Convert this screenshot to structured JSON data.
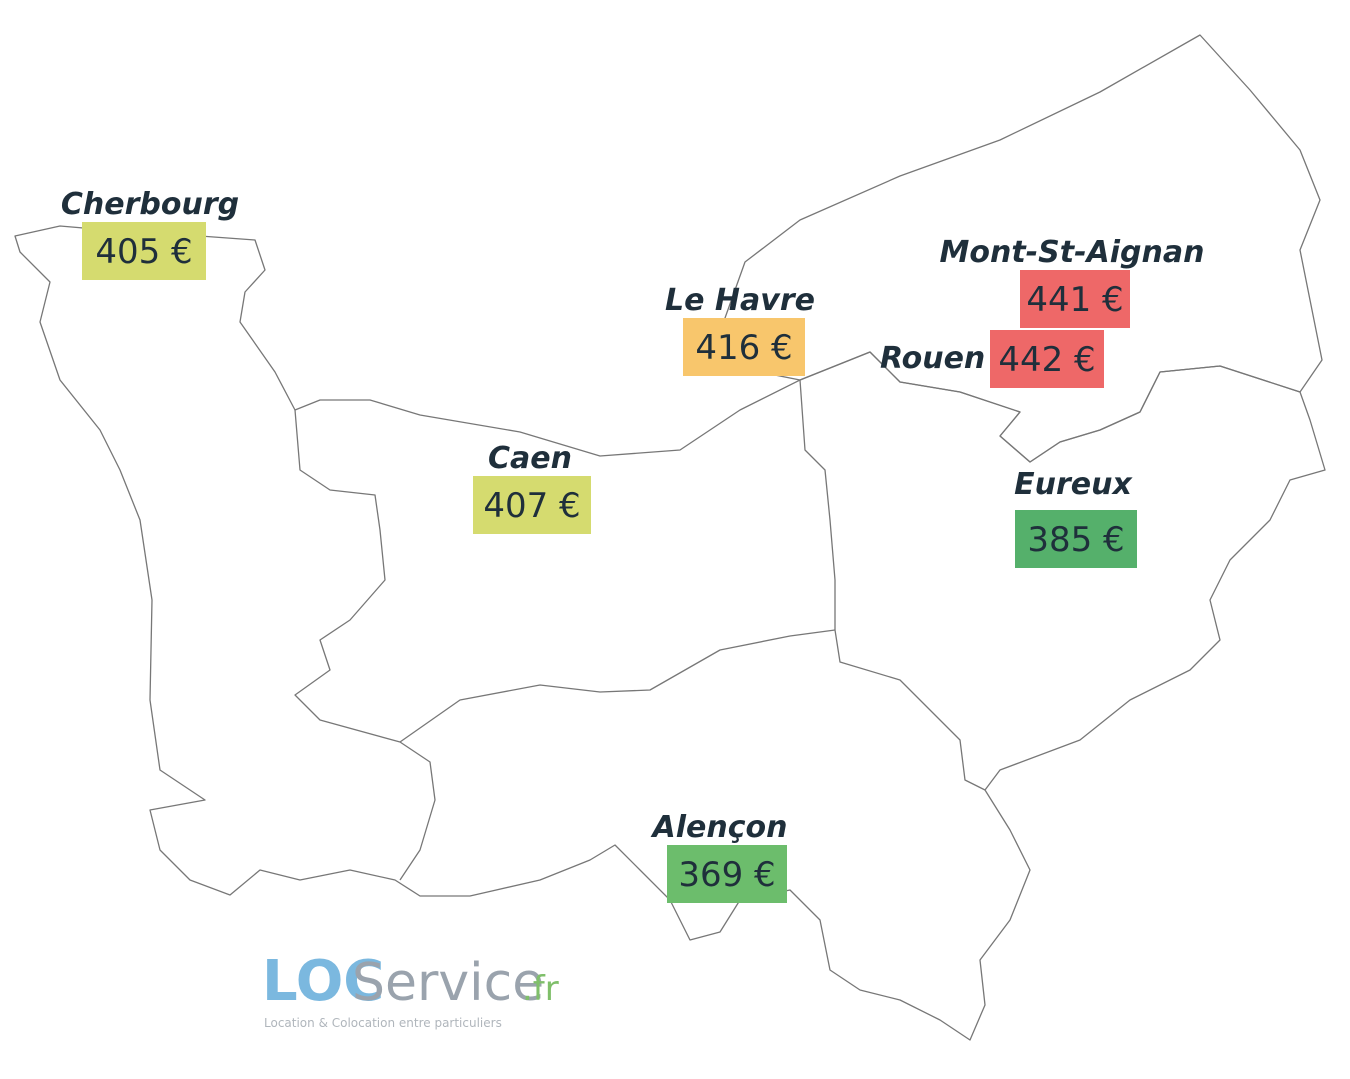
{
  "cities": [
    {
      "name": "Cherbourg",
      "price": "405 €",
      "color": "#d5db6f"
    },
    {
      "name": "Le Havre",
      "price": "416 €",
      "color": "#f8c66c"
    },
    {
      "name": "Mont-St-Aignan",
      "price": "441 €",
      "color": "#ee6868"
    },
    {
      "name": "Rouen",
      "price": "442 €",
      "color": "#ee6868"
    },
    {
      "name": "Caen",
      "price": "407 €",
      "color": "#d5db6f"
    },
    {
      "name": "Eureux",
      "price": "385 €",
      "color": "#55b06b"
    },
    {
      "name": "Alençon",
      "price": "369 €",
      "color": "#6cbd6c"
    }
  ],
  "logo": {
    "loc": "LOC",
    "service": "Service",
    "tld": ".fr",
    "tagline": "Location & Colocation entre particuliers"
  }
}
